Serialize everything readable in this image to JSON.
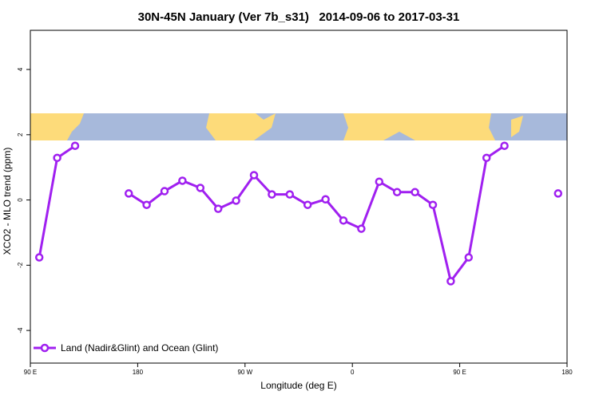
{
  "chart_data": {
    "type": "line",
    "title": "30N-45N January (Ver 7b_s31)   2014-09-06 to 2017-03-31",
    "xlabel": "Longitude (deg E)",
    "ylabel": "XCO2 - MLO trend (ppm)",
    "x": [
      97.5,
      112.5,
      127.5,
      142.5,
      157.5,
      172.5,
      187.5,
      202.5,
      217.5,
      232.5,
      247.5,
      262.5,
      277.5,
      292.5,
      307.5,
      322.5,
      337.5,
      352.5,
      367.5,
      382.5,
      397.5,
      412.5,
      427.5,
      442.5,
      457.5,
      472.5,
      487.5,
      502.5,
      517.5,
      532.5
    ],
    "series": [
      {
        "name": "Land (Nadir&Glint) and Ocean (Glint)",
        "color": "#a020f0",
        "values": [
          -1.76,
          1.29,
          1.66,
          null,
          null,
          0.2,
          -0.15,
          0.27,
          0.59,
          0.37,
          -0.27,
          -0.02,
          0.76,
          0.17,
          0.17,
          -0.15,
          0.02,
          -0.63,
          -0.88,
          0.56,
          0.24,
          0.24,
          -0.15,
          -2.49,
          -1.76,
          1.29,
          1.66,
          null,
          null,
          0.2
        ]
      }
    ],
    "xlim": [
      90,
      540
    ],
    "xticks": [
      {
        "value": 90,
        "label": "90 E"
      },
      {
        "value": 180,
        "label": "180"
      },
      {
        "value": 270,
        "label": "90 W"
      },
      {
        "value": 360,
        "label": "0"
      },
      {
        "value": 450,
        "label": "90 E"
      },
      {
        "value": 540,
        "label": "180"
      }
    ],
    "ylim": [
      -5,
      5.2
    ],
    "yticks": [
      -4,
      -2,
      0,
      2,
      4
    ],
    "legend": "bottom-left"
  }
}
